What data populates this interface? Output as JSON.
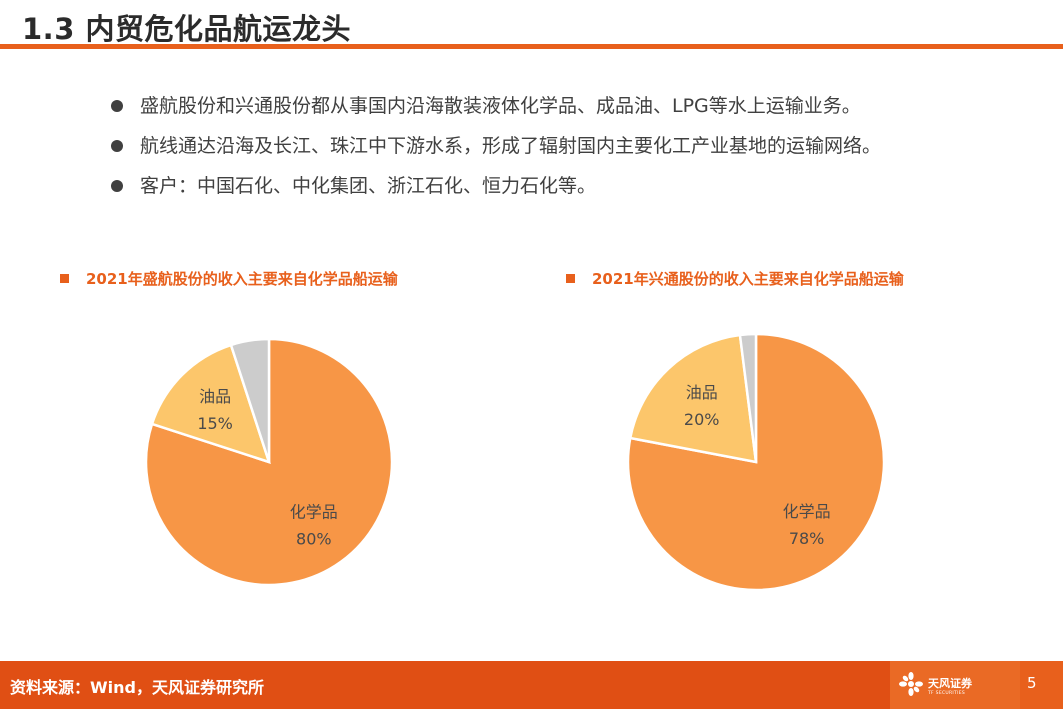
{
  "title": "1.3 内贸危化品航运龙头",
  "bullets": [
    "盛航股份和兴通股份都从事国内沿海散装液体化学品、成品油、LPG等水上运输业务。",
    "航线通达沿海及长江、珠江中下游水系，形成了辐射国内主要化工产业基地的运输网络。",
    "客户：中国石化、中化集团、浙江石化、恒力石化等。"
  ],
  "colors": {
    "accent": "#e8601c",
    "chemical": "#f79646",
    "oil": "#fcc66b",
    "other": "#cccccc"
  },
  "chart_data": [
    {
      "type": "pie",
      "title": "2021年盛航股份的收入主要来自化学品船运输",
      "slices": [
        {
          "label": "化学品",
          "value": 80,
          "display": "80%"
        },
        {
          "label": "油品",
          "value": 15,
          "display": "15%"
        },
        {
          "label": "",
          "value": 5,
          "display": ""
        }
      ]
    },
    {
      "type": "pie",
      "title": "2021年兴通股份的收入主要来自化学品船运输",
      "slices": [
        {
          "label": "化学品",
          "value": 78,
          "display": "78%"
        },
        {
          "label": "油品",
          "value": 20,
          "display": "20%"
        },
        {
          "label": "",
          "value": 2,
          "display": ""
        }
      ]
    }
  ],
  "footer": {
    "source": "资料来源：Wind，天风证券研究所",
    "logo_text": "天风证券",
    "logo_sub": "TF SECURITIES",
    "page": "5"
  }
}
